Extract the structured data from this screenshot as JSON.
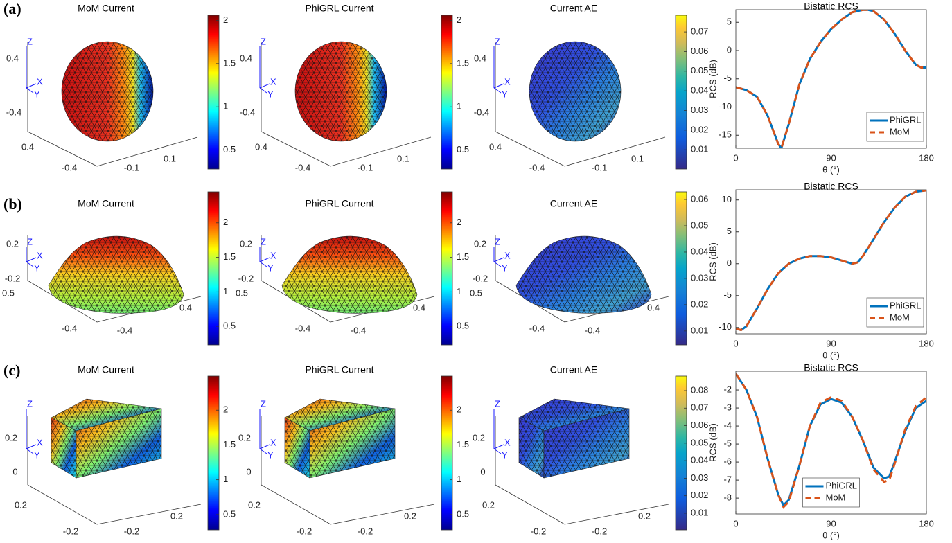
{
  "chart_data": [
    {
      "type": "mesh",
      "panel_label": "(a)",
      "title": "MoM Current",
      "triad": [
        "Z",
        "X",
        "Y"
      ],
      "zticks": [
        0.4,
        -0.4
      ],
      "yticks": [
        0.4,
        -0.4
      ],
      "xticks": [
        -0.1,
        0.1
      ],
      "colormap": "jet",
      "clim": [
        0.28,
        2.06
      ],
      "cticks": [
        0.5,
        1,
        1.5,
        2
      ]
    },
    {
      "type": "mesh",
      "title": "PhiGRL Current",
      "triad": [
        "Z",
        "X",
        "Y"
      ],
      "zticks": [
        0.4,
        -0.4
      ],
      "yticks": [
        0.4,
        -0.4
      ],
      "xticks": [
        -0.1,
        0.1
      ],
      "colormap": "jet",
      "clim": [
        0.28,
        2.06
      ],
      "cticks": [
        0.5,
        1,
        1.5,
        2
      ]
    },
    {
      "type": "mesh",
      "title": "Current AE",
      "triad": [
        "Z",
        "X",
        "Y"
      ],
      "zticks": [
        0.4,
        -0.4
      ],
      "yticks": [
        0.4,
        -0.4
      ],
      "xticks": [
        -0.1,
        0.1
      ],
      "colormap": "parula",
      "clim": [
        0.0002,
        0.0785
      ],
      "cticks": [
        0.01,
        0.02,
        0.03,
        0.04,
        0.05,
        0.06,
        0.07
      ]
    },
    {
      "type": "line",
      "title": "Bistatic RCS",
      "xlabel": "θ (°)",
      "ylabel": "RCS (dB)",
      "x": [
        0,
        10,
        20,
        30,
        40,
        43,
        50,
        60,
        70,
        80,
        90,
        100,
        110,
        120,
        125,
        130,
        140,
        150,
        160,
        170,
        175,
        180
      ],
      "series": [
        {
          "name": "PhiGRL",
          "color": "#0072bd",
          "values": [
            -6.5,
            -7,
            -8.2,
            -11.5,
            -16.5,
            -17.3,
            -13,
            -6,
            -1.5,
            1.5,
            3.8,
            5.5,
            6.8,
            7.2,
            7.2,
            7.0,
            5.5,
            3,
            0,
            -2.5,
            -3,
            -3
          ]
        },
        {
          "name": "MoM",
          "color": "#d95319",
          "dash": true,
          "values": [
            -6.5,
            -7,
            -8.2,
            -11.5,
            -16.5,
            -17.3,
            -13,
            -6,
            -1.5,
            1.5,
            3.8,
            5.5,
            6.8,
            7.2,
            7.2,
            7.0,
            5.5,
            3,
            0,
            -2.5,
            -3,
            -3
          ]
        }
      ],
      "xlim": [
        0,
        180
      ],
      "xticks": [
        0,
        90,
        180
      ],
      "ylim": [
        -17.3,
        7.24
      ],
      "yticks": [
        -15,
        -10,
        -5,
        0,
        5
      ],
      "legend": "lower right"
    },
    {
      "type": "mesh",
      "panel_label": "(b)",
      "title": "MoM Current",
      "triad": [
        "Z",
        "X",
        "Y"
      ],
      "zticks": [
        0.2,
        -0.2
      ],
      "yticks": [
        0.5,
        -0.4
      ],
      "xticks": [
        -0.4,
        0.4
      ],
      "colormap": "jet",
      "clim": [
        0.23,
        2.45
      ],
      "cticks": [
        0.5,
        1,
        1.5,
        2
      ]
    },
    {
      "type": "mesh",
      "title": "PhiGRL Current",
      "triad": [
        "Z",
        "X",
        "Y"
      ],
      "zticks": [
        0.2,
        -0.2
      ],
      "yticks": [
        0.5,
        -0.4
      ],
      "xticks": [
        -0.4,
        0.4
      ],
      "colormap": "jet",
      "clim": [
        0.23,
        2.45
      ],
      "cticks": [
        0.5,
        1,
        1.5,
        2
      ]
    },
    {
      "type": "mesh",
      "title": "Current AE",
      "triad": [
        "Z",
        "X",
        "Y"
      ],
      "zticks": [
        0.2,
        -0.2
      ],
      "yticks": [
        0.5,
        -0.4
      ],
      "xticks": [
        -0.4,
        0.4
      ],
      "colormap": "parula",
      "clim": [
        0.0047,
        0.0629
      ],
      "cticks": [
        0.01,
        0.02,
        0.03,
        0.04,
        0.05,
        0.06
      ]
    },
    {
      "type": "line",
      "title": "Bistatic RCS",
      "xlabel": "θ (°)",
      "ylabel": "RCS (dB)",
      "x": [
        0,
        5,
        10,
        20,
        30,
        40,
        50,
        60,
        70,
        80,
        90,
        100,
        110,
        115,
        120,
        130,
        140,
        150,
        160,
        170,
        180
      ],
      "series": [
        {
          "name": "PhiGRL",
          "color": "#0072bd",
          "values": [
            -10.2,
            -10.4,
            -9.8,
            -7,
            -4,
            -1.5,
            0,
            0.8,
            1.2,
            1.2,
            1.0,
            0.5,
            0,
            0.2,
            1.2,
            3.8,
            6.5,
            8.8,
            10.5,
            11.3,
            11.5
          ]
        },
        {
          "name": "MoM",
          "color": "#d95319",
          "dash": true,
          "values": [
            -10.2,
            -10.4,
            -9.8,
            -7,
            -4,
            -1.5,
            0,
            0.8,
            1.2,
            1.2,
            1.0,
            0.5,
            0,
            0.2,
            1.2,
            3.8,
            6.5,
            8.8,
            10.5,
            11.3,
            11.5
          ]
        }
      ],
      "xlim": [
        0,
        180
      ],
      "xticks": [
        0,
        90,
        180
      ],
      "ylim": [
        -11,
        11.6
      ],
      "yticks": [
        -10,
        -5,
        0,
        5,
        10
      ],
      "legend": "lower right"
    },
    {
      "type": "mesh",
      "panel_label": "(c)",
      "title": "MoM Current",
      "triad": [
        "Z",
        "X",
        "Y"
      ],
      "zticks": [
        0.2,
        0
      ],
      "yticks": [
        0.2,
        -0.2
      ],
      "xticks": [
        -0.2,
        0.2
      ],
      "colormap": "jet",
      "clim": [
        0.28,
        2.49
      ],
      "cticks": [
        0.5,
        1,
        1.5,
        2
      ]
    },
    {
      "type": "mesh",
      "title": "PhiGRL Current",
      "triad": [
        "Z",
        "X",
        "Y"
      ],
      "zticks": [
        0.2,
        0
      ],
      "yticks": [
        0.2,
        -0.2
      ],
      "xticks": [
        -0.2,
        0.2
      ],
      "colormap": "jet",
      "clim": [
        0.28,
        2.49
      ],
      "cticks": [
        0.5,
        1,
        1.5,
        2
      ]
    },
    {
      "type": "mesh",
      "title": "Current AE",
      "triad": [
        "Z",
        "X",
        "Y"
      ],
      "zticks": [
        0.2,
        0
      ],
      "yticks": [
        0.2,
        -0.2
      ],
      "xticks": [
        -0.2,
        0.2
      ],
      "colormap": "parula",
      "clim": [
        0.0005,
        0.0883
      ],
      "cticks": [
        0.01,
        0.02,
        0.03,
        0.04,
        0.05,
        0.06,
        0.07,
        0.08
      ]
    },
    {
      "type": "line",
      "title": "Bistatic RCS",
      "xlabel": "θ (°)",
      "ylabel": "RCS (dB)",
      "x": [
        0,
        10,
        20,
        30,
        40,
        45,
        50,
        60,
        70,
        80,
        90,
        100,
        110,
        120,
        130,
        140,
        145,
        150,
        160,
        170,
        180
      ],
      "series": [
        {
          "name": "PhiGRL",
          "color": "#0072bd",
          "values": [
            -1.1,
            -2,
            -3.5,
            -5.8,
            -7.8,
            -8.4,
            -8.1,
            -6.2,
            -4.0,
            -2.8,
            -2.5,
            -2.7,
            -3.5,
            -4.8,
            -6.3,
            -6.9,
            -6.8,
            -6,
            -4.3,
            -3.0,
            -2.6
          ]
        },
        {
          "name": "MoM",
          "color": "#d95319",
          "dash": true,
          "values": [
            -1.1,
            -2,
            -3.5,
            -5.8,
            -7.8,
            -8.5,
            -8.2,
            -6.2,
            -4.0,
            -2.7,
            -2.4,
            -2.6,
            -3.5,
            -4.8,
            -6.4,
            -7.1,
            -7.0,
            -6.1,
            -4.2,
            -2.9,
            -2.4
          ]
        }
      ],
      "xlim": [
        0,
        180
      ],
      "xticks": [
        0,
        90,
        180
      ],
      "ylim": [
        -8.88,
        -0.96
      ],
      "yticks": [
        -8,
        -7,
        -6,
        -5,
        -4,
        -3,
        -2
      ],
      "legend": "lower center"
    }
  ]
}
